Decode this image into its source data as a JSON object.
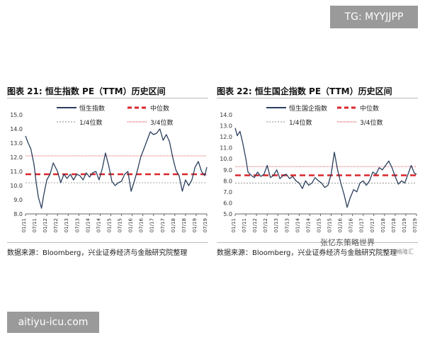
{
  "watermark_top": "TG: MYYJJPP",
  "watermark_bottom": "aitiyu-icu.com",
  "brand": "张忆东策略世界",
  "brand_sub": "格隆汇",
  "source_text": "数据来源：Bloomberg，兴业证券经济与金融研究院整理",
  "chart_data": [
    {
      "type": "line",
      "title": "图表 21:  恒生指数 PE（TTM）历史区间",
      "ylim": [
        8.0,
        15.0
      ],
      "yticks": [
        8.0,
        9.0,
        10.0,
        11.0,
        12.0,
        13.0,
        14.0,
        15.0
      ],
      "x_ticks": [
        "01/11",
        "07/11",
        "01/12",
        "07/12",
        "01/13",
        "07/13",
        "01/14",
        "07/14",
        "01/15",
        "07/15",
        "01/16",
        "07/16",
        "01/17",
        "07/17",
        "01/18",
        "07/18",
        "01/19",
        "07/19"
      ],
      "legend": {
        "series": "恒生指数",
        "median": "中位数",
        "q1": "1/4位数",
        "q3": "3/4位数"
      },
      "median": 10.8,
      "q1": 10.2,
      "q3": 12.1,
      "series": [
        {
          "name": "恒生指数",
          "x": [
            0,
            0.25,
            0.5,
            0.8,
            1.0,
            1.2,
            1.5,
            1.7,
            2.0,
            2.3,
            2.6,
            3.0,
            3.3,
            3.6,
            3.9,
            4.2,
            4.5,
            4.8,
            5.1,
            5.4,
            5.7,
            6.0,
            6.3,
            6.6,
            6.9,
            7.2,
            7.5,
            7.8,
            8.1,
            8.4,
            8.7,
            9.0,
            9.3,
            9.6,
            9.9,
            10.2,
            10.5,
            10.8,
            11.1,
            11.4,
            11.7,
            12.0,
            12.3,
            12.6,
            12.9,
            13.2,
            13.5,
            13.8,
            14.1,
            14.4,
            14.7,
            15.0,
            15.3,
            15.6,
            15.9,
            16.2,
            16.5,
            16.8,
            17.0
          ],
          "values": [
            13.5,
            13.0,
            12.6,
            11.5,
            10.2,
            9.2,
            8.4,
            9.3,
            10.4,
            10.8,
            11.6,
            11.0,
            10.2,
            10.8,
            10.5,
            10.8,
            10.4,
            10.8,
            10.7,
            10.4,
            10.9,
            10.6,
            10.9,
            11.0,
            10.4,
            11.2,
            12.3,
            11.4,
            10.3,
            10.0,
            10.2,
            10.3,
            10.8,
            11.0,
            9.6,
            10.3,
            11.1,
            12.0,
            12.6,
            13.2,
            13.8,
            13.6,
            13.7,
            14.0,
            13.2,
            13.6,
            13.1,
            12.0,
            11.1,
            10.7,
            9.6,
            10.4,
            10.0,
            10.4,
            11.3,
            11.7,
            11.0,
            10.7,
            11.3
          ]
        }
      ]
    },
    {
      "type": "line",
      "title": "图表 22:  恒生国企指数 PE（TTM）历史区间",
      "ylim": [
        5.0,
        14.0
      ],
      "yticks": [
        5.0,
        6.0,
        7.0,
        8.0,
        9.0,
        10.0,
        11.0,
        12.0,
        13.0,
        14.0
      ],
      "x_ticks": [
        "01/11",
        "07/11",
        "01/12",
        "07/12",
        "01/13",
        "07/13",
        "01/14",
        "07/14",
        "01/15",
        "07/15",
        "01/16",
        "07/16",
        "01/17",
        "07/17",
        "01/18",
        "07/18",
        "01/19",
        "07/19"
      ],
      "legend": {
        "series": "恒生国企指数",
        "median": "中位数",
        "q1": "1/4位数",
        "q3": "3/4位数"
      },
      "median": 8.5,
      "q1": 7.8,
      "q3": 9.3,
      "series": [
        {
          "name": "恒生国企指数",
          "x": [
            0,
            0.2,
            0.45,
            0.7,
            1.0,
            1.2,
            1.5,
            1.8,
            2.1,
            2.4,
            2.7,
            3.0,
            3.3,
            3.6,
            3.9,
            4.2,
            4.5,
            4.8,
            5.1,
            5.4,
            5.7,
            6.0,
            6.3,
            6.6,
            6.9,
            7.2,
            7.5,
            7.8,
            8.1,
            8.4,
            8.7,
            9.0,
            9.3,
            9.6,
            9.9,
            10.2,
            10.5,
            10.8,
            11.1,
            11.4,
            11.7,
            12.0,
            12.3,
            12.6,
            12.9,
            13.2,
            13.5,
            13.8,
            14.1,
            14.4,
            14.7,
            15.0,
            15.3,
            15.6,
            15.9,
            16.2,
            16.5,
            16.8,
            17.0
          ],
          "values": [
            12.8,
            12.1,
            12.5,
            11.5,
            10.0,
            8.8,
            8.5,
            8.3,
            8.8,
            8.4,
            8.6,
            9.4,
            8.3,
            8.5,
            9.0,
            8.2,
            8.5,
            8.6,
            8.2,
            8.4,
            8.0,
            7.8,
            7.3,
            8.0,
            7.6,
            7.8,
            8.3,
            8.0,
            7.8,
            7.4,
            7.6,
            8.6,
            10.6,
            9.0,
            7.8,
            6.8,
            5.6,
            6.5,
            7.2,
            7.0,
            7.8,
            8.0,
            7.6,
            8.0,
            8.8,
            8.6,
            9.2,
            9.0,
            9.4,
            9.8,
            9.2,
            8.4,
            7.7,
            8.0,
            7.8,
            8.6,
            9.4,
            8.7,
            8.6
          ]
        }
      ]
    }
  ]
}
